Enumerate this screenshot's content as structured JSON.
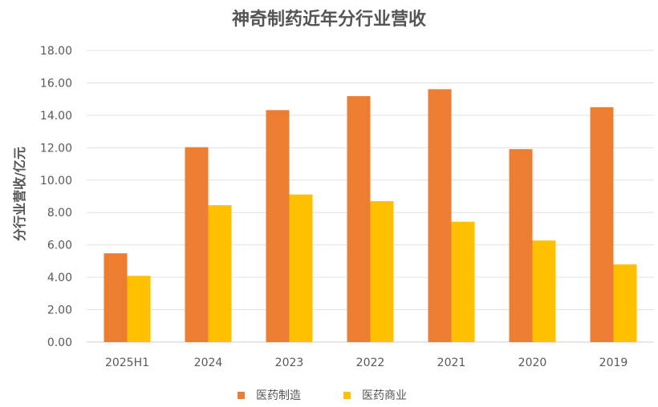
{
  "chart_data": {
    "type": "bar",
    "title": "神奇制药近年分行业营收",
    "xlabel": "",
    "ylabel": "分行业营收/亿元",
    "categories": [
      "2025H1",
      "2024",
      "2023",
      "2022",
      "2021",
      "2020",
      "2019"
    ],
    "series": [
      {
        "name": "医药制造",
        "color": "#ED7D31",
        "values": [
          5.48,
          12.03,
          14.32,
          15.18,
          15.61,
          11.91,
          14.5
        ]
      },
      {
        "name": "医药商业",
        "color": "#FFC000",
        "values": [
          4.09,
          8.45,
          9.11,
          8.7,
          7.43,
          6.27,
          4.8
        ]
      }
    ],
    "ylim": [
      0,
      18
    ],
    "yticks": [
      "0.00",
      "2.00",
      "4.00",
      "6.00",
      "8.00",
      "10.00",
      "12.00",
      "14.00",
      "16.00",
      "18.00"
    ],
    "grid": true,
    "legend_position": "bottom"
  }
}
